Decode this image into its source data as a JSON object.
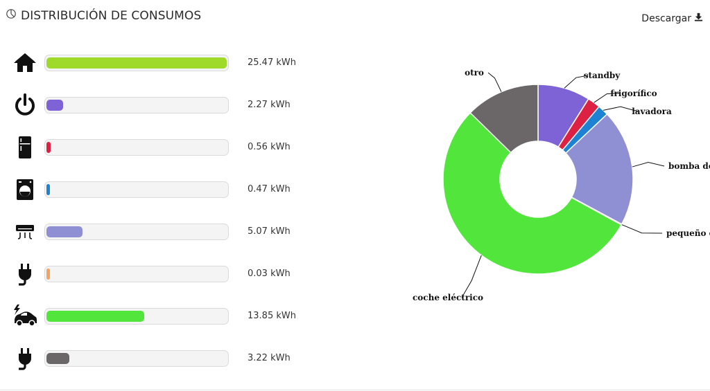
{
  "header": {
    "title": "DISTRIBUCIÓN DE CONSUMOS",
    "icon": "pie-chart-icon",
    "download_label": "Descargar",
    "download_icon": "download-icon"
  },
  "rows": [
    {
      "icon": "home-icon",
      "value_label": "25.47 kWh",
      "value": 25.47,
      "color": "#9fd929"
    },
    {
      "icon": "power-icon",
      "value_label": "2.27 kWh",
      "value": 2.27,
      "color": "#7e63d6"
    },
    {
      "icon": "fridge-icon",
      "value_label": "0.56 kWh",
      "value": 0.56,
      "color": "#dc2143"
    },
    {
      "icon": "washing-machine-icon",
      "value_label": "0.47 kWh",
      "value": 0.47,
      "color": "#1e82d2"
    },
    {
      "icon": "air-conditioner-icon",
      "value_label": "5.07 kWh",
      "value": 5.07,
      "color": "#8f8fd3"
    },
    {
      "icon": "plug-icon",
      "value_label": "0.03 kWh",
      "value": 0.03,
      "color": "#f4a460"
    },
    {
      "icon": "electric-car-icon",
      "value_label": "13.85 kWh",
      "value": 13.85,
      "color": "#52e63d"
    },
    {
      "icon": "plug-icon",
      "value_label": "3.22 kWh",
      "value": 3.22,
      "color": "#6b6769"
    }
  ],
  "chart_data": {
    "type": "pie",
    "categories": [
      "standby",
      "frigorífico",
      "lavadora",
      "bomba de",
      "pequeño elec",
      "coche eléctrico",
      "otro"
    ],
    "values": [
      2.27,
      0.56,
      0.47,
      5.07,
      0.03,
      13.85,
      3.22
    ],
    "colors": [
      "#7e63d6",
      "#dc2143",
      "#1e82d2",
      "#8f8fd3",
      "#f4a460",
      "#52e63d",
      "#6b6769"
    ],
    "donut": true,
    "legend": "none"
  }
}
